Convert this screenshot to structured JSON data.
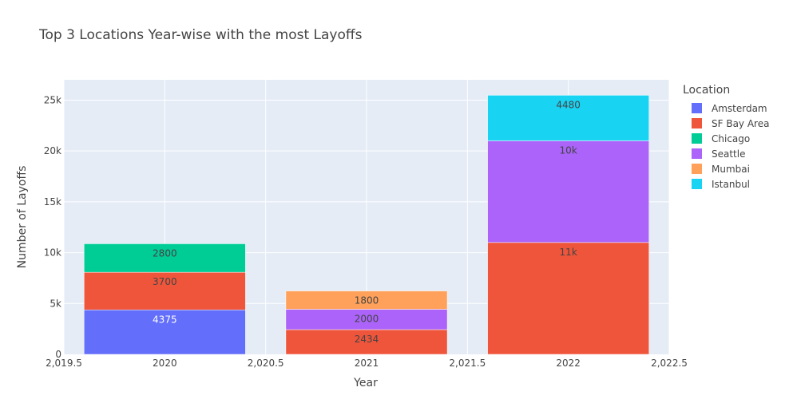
{
  "chart_data": {
    "type": "bar",
    "barmode": "stack",
    "title": "Top 3 Locations Year-wise with the most Layoffs",
    "xlabel": "Year",
    "ylabel": "Number of Layoffs",
    "x": [
      2020,
      2021,
      2022
    ],
    "xlim": [
      2019.5,
      2022.5
    ],
    "xticks": [
      {
        "value": 2019.5,
        "label": "2,019.5"
      },
      {
        "value": 2020,
        "label": "2020"
      },
      {
        "value": 2020.5,
        "label": "2,020.5"
      },
      {
        "value": 2021,
        "label": "2021"
      },
      {
        "value": 2021.5,
        "label": "2,021.5"
      },
      {
        "value": 2022,
        "label": "2022"
      },
      {
        "value": 2022.5,
        "label": "2,022.5"
      }
    ],
    "ylim": [
      0,
      27000
    ],
    "yticks": [
      {
        "value": 0,
        "label": "0"
      },
      {
        "value": 5000,
        "label": "5k"
      },
      {
        "value": 10000,
        "label": "10k"
      },
      {
        "value": 15000,
        "label": "15k"
      },
      {
        "value": 20000,
        "label": "20k"
      },
      {
        "value": 25000,
        "label": "25k"
      }
    ],
    "grid": true,
    "legend_title": "Location",
    "legend_position": "right",
    "series": [
      {
        "name": "Amsterdam",
        "color": "#636efa",
        "values": [
          4375,
          null,
          null
        ],
        "labels": [
          "4375",
          "",
          ""
        ],
        "label_color": "#ffffff"
      },
      {
        "name": "SF Bay Area",
        "color": "#ef553b",
        "values": [
          3700,
          2434,
          11000
        ],
        "labels": [
          "3700",
          "2434",
          "11k"
        ],
        "label_color": "#444444"
      },
      {
        "name": "Chicago",
        "color": "#00cc96",
        "values": [
          2800,
          null,
          null
        ],
        "labels": [
          "2800",
          "",
          ""
        ],
        "label_color": "#444444"
      },
      {
        "name": "Seattle",
        "color": "#ab63fa",
        "values": [
          null,
          2000,
          10000
        ],
        "labels": [
          "",
          "2000",
          "10k"
        ],
        "label_color": "#444444"
      },
      {
        "name": "Mumbai",
        "color": "#ffa15a",
        "values": [
          null,
          1800,
          null
        ],
        "labels": [
          "",
          "1800",
          ""
        ],
        "label_color": "#444444"
      },
      {
        "name": "Istanbul",
        "color": "#19d3f3",
        "values": [
          null,
          null,
          4480
        ],
        "labels": [
          "",
          "",
          "4480"
        ],
        "label_color": "#444444"
      }
    ],
    "plot_background": "#e5ecf6"
  }
}
